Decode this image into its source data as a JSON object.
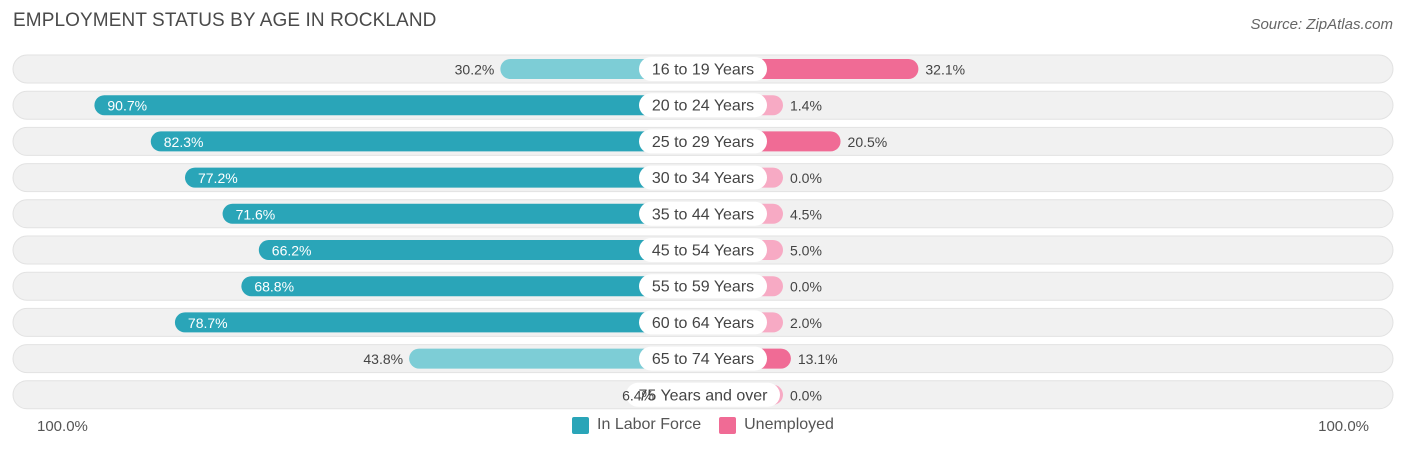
{
  "title": "EMPLOYMENT STATUS BY AGE IN ROCKLAND",
  "source": "Source: ZipAtlas.com",
  "colors": {
    "labor_strong": "#2aa5b8",
    "labor_light": "#7dcdd6",
    "unemp_strong": "#f06b95",
    "unemp_light": "#f7aac4",
    "row_bg": "#f1f1f1"
  },
  "axis": {
    "left_label": "100.0%",
    "right_label": "100.0%"
  },
  "legend": [
    {
      "label": "In Labor Force",
      "color": "#2aa5b8"
    },
    {
      "label": "Unemployed",
      "color": "#f06b95"
    }
  ],
  "chart_data": {
    "type": "bar",
    "title": "EMPLOYMENT STATUS BY AGE IN ROCKLAND",
    "categories": [
      "16 to 19 Years",
      "20 to 24 Years",
      "25 to 29 Years",
      "30 to 34 Years",
      "35 to 44 Years",
      "45 to 54 Years",
      "55 to 59 Years",
      "60 to 64 Years",
      "65 to 74 Years",
      "75 Years and over"
    ],
    "series": [
      {
        "name": "In Labor Force",
        "values": [
          30.2,
          90.7,
          82.3,
          77.2,
          71.6,
          66.2,
          68.8,
          78.7,
          43.8,
          6.4
        ],
        "labels": [
          "30.2%",
          "90.7%",
          "82.3%",
          "77.2%",
          "71.6%",
          "66.2%",
          "68.8%",
          "78.7%",
          "43.8%",
          "6.4%"
        ]
      },
      {
        "name": "Unemployed",
        "values": [
          32.1,
          1.4,
          20.5,
          0.0,
          4.5,
          5.0,
          0.0,
          2.0,
          13.1,
          0.0
        ],
        "labels": [
          "32.1%",
          "1.4%",
          "20.5%",
          "0.0%",
          "4.5%",
          "5.0%",
          "0.0%",
          "2.0%",
          "13.1%",
          "0.0%"
        ]
      }
    ],
    "xlim": [
      -100,
      100
    ],
    "xlabel_left": "100.0%",
    "xlabel_right": "100.0%",
    "legend_position": "bottom-center"
  }
}
